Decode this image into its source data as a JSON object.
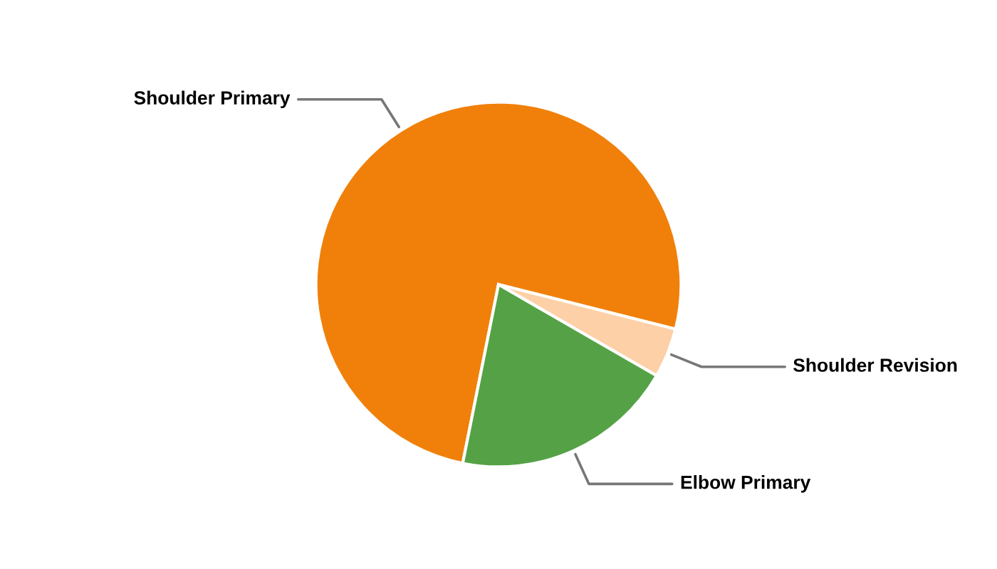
{
  "chart_data": {
    "type": "pie",
    "categories": [
      "Shoulder Primary",
      "Shoulder Revision",
      "Elbow Primary"
    ],
    "values": [
      75.8,
      4.4,
      19.8
    ],
    "colors": [
      "#f0800a",
      "#fdd0a7",
      "#54a245"
    ]
  }
}
